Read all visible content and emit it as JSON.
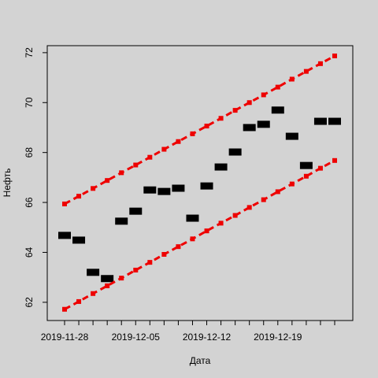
{
  "chart_data": {
    "type": "line",
    "x_label": "Дата",
    "y_label": "Нефть",
    "categories": [
      "2019-11-28",
      null,
      null,
      null,
      null,
      "2019-12-05",
      null,
      null,
      null,
      null,
      "2019-12-12",
      null,
      null,
      null,
      null,
      "2019-12-19",
      null,
      null,
      null,
      null
    ],
    "ylim": [
      61.27,
      72.28
    ],
    "yticks": [
      62,
      64,
      66,
      68,
      70,
      72
    ],
    "series": [
      {
        "color": "#000000",
        "style": "points",
        "values": [
          64.68,
          64.49,
          63.2,
          62.95,
          65.25,
          65.65,
          66.5,
          66.44,
          66.57,
          65.37,
          66.66,
          67.42,
          68.02,
          69.0,
          69.13,
          69.7,
          68.65,
          67.48,
          69.25,
          69.25
        ]
      },
      {
        "color": "#ee0000",
        "style": "dashed",
        "values": [
          65.94,
          66.25,
          66.56,
          66.88,
          67.19,
          67.5,
          67.81,
          68.13,
          68.44,
          68.75,
          69.06,
          69.37,
          69.69,
          70.0,
          70.31,
          70.62,
          70.94,
          71.25,
          71.56,
          71.87
        ]
      },
      {
        "color": "#ee0000",
        "style": "dashed",
        "values": [
          61.72,
          62.03,
          62.35,
          62.66,
          62.97,
          63.29,
          63.6,
          63.92,
          64.23,
          64.54,
          64.86,
          65.17,
          65.48,
          65.8,
          66.11,
          66.43,
          66.74,
          67.05,
          67.37,
          67.68
        ]
      }
    ]
  }
}
